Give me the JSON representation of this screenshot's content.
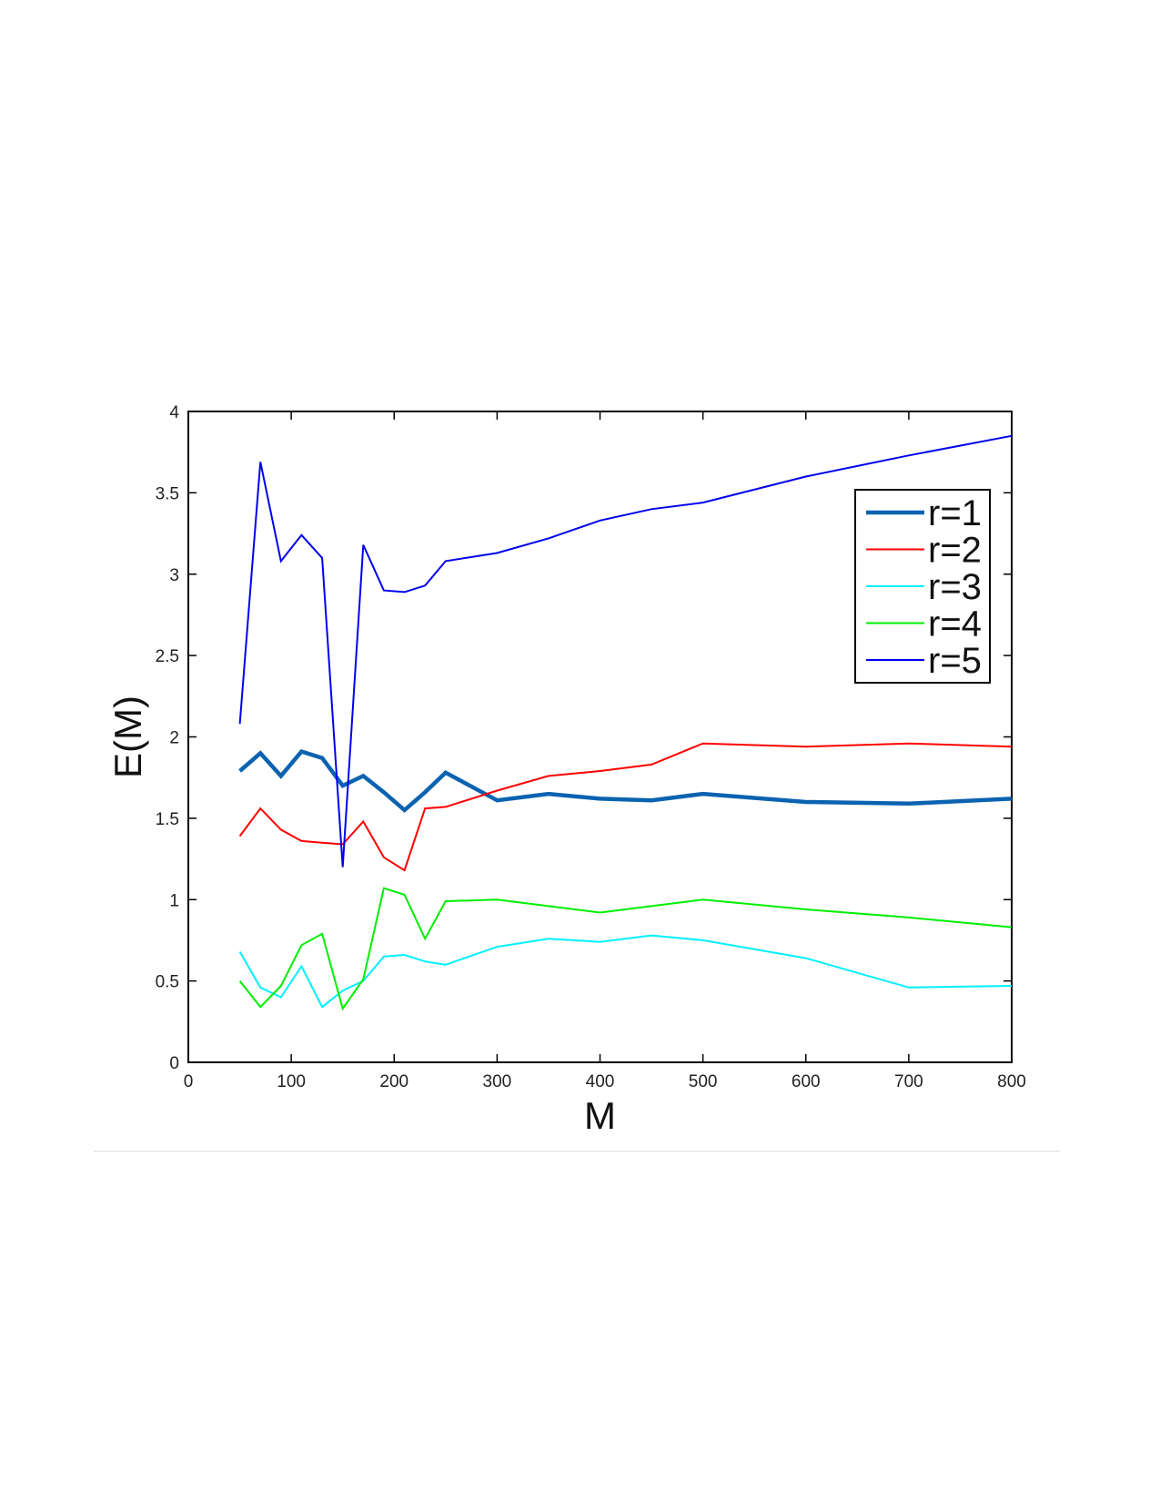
{
  "chart_data": {
    "type": "line",
    "title": "",
    "xlabel": "M",
    "ylabel": "E(M)",
    "xlim": [
      0,
      800
    ],
    "ylim": [
      0,
      4
    ],
    "xticks": [
      0,
      100,
      200,
      300,
      400,
      500,
      600,
      700,
      800
    ],
    "yticks": [
      0,
      0.5,
      1,
      1.5,
      2,
      2.5,
      3,
      3.5,
      4
    ],
    "ytick_labels": [
      "0",
      "0.5",
      "1",
      "1.5",
      "2",
      "2.5",
      "3",
      "3.5",
      "4"
    ],
    "grid": false,
    "legend_position": "top-right",
    "series": [
      {
        "name": "r=1",
        "color": "#0b63b0",
        "emphasis": "thick",
        "x": [
          50,
          70,
          90,
          110,
          130,
          150,
          170,
          190,
          210,
          230,
          250,
          300,
          350,
          400,
          450,
          500,
          600,
          700,
          800
        ],
        "y": [
          1.79,
          1.9,
          1.76,
          1.91,
          1.87,
          1.7,
          1.76,
          1.66,
          1.55,
          1.66,
          1.78,
          1.61,
          1.65,
          1.62,
          1.61,
          1.65,
          1.6,
          1.59,
          1.62
        ]
      },
      {
        "name": "r=2",
        "color": "#ff0000",
        "emphasis": "normal",
        "x": [
          50,
          70,
          90,
          110,
          130,
          150,
          170,
          190,
          210,
          230,
          250,
          300,
          350,
          400,
          450,
          500,
          600,
          700,
          800
        ],
        "y": [
          1.39,
          1.56,
          1.43,
          1.36,
          1.35,
          1.34,
          1.48,
          1.26,
          1.18,
          1.56,
          1.57,
          1.67,
          1.76,
          1.79,
          1.83,
          1.96,
          1.94,
          1.96,
          1.94
        ]
      },
      {
        "name": "r=3",
        "color": "#00f0ff",
        "emphasis": "normal",
        "x": [
          50,
          70,
          90,
          110,
          130,
          150,
          170,
          190,
          210,
          230,
          250,
          300,
          350,
          400,
          450,
          500,
          600,
          700,
          800
        ],
        "y": [
          0.68,
          0.46,
          0.4,
          0.59,
          0.34,
          0.44,
          0.5,
          0.65,
          0.66,
          0.62,
          0.6,
          0.71,
          0.76,
          0.74,
          0.78,
          0.75,
          0.64,
          0.46,
          0.47
        ]
      },
      {
        "name": "r=4",
        "color": "#00ee00",
        "emphasis": "normal",
        "x": [
          50,
          70,
          90,
          110,
          130,
          150,
          170,
          190,
          210,
          230,
          250,
          300,
          350,
          400,
          450,
          500,
          600,
          700,
          800
        ],
        "y": [
          0.5,
          0.34,
          0.47,
          0.72,
          0.79,
          0.33,
          0.51,
          1.07,
          1.03,
          0.76,
          0.99,
          1.0,
          0.96,
          0.92,
          0.96,
          1.0,
          0.94,
          0.89,
          0.83
        ]
      },
      {
        "name": "r=5",
        "color": "#0000ee",
        "emphasis": "normal",
        "x": [
          50,
          70,
          90,
          110,
          130,
          150,
          170,
          190,
          210,
          230,
          250,
          300,
          350,
          400,
          450,
          500,
          600,
          700,
          800
        ],
        "y": [
          2.08,
          3.69,
          3.08,
          3.24,
          3.1,
          1.2,
          3.18,
          2.9,
          2.89,
          2.93,
          3.08,
          3.13,
          3.22,
          3.33,
          3.4,
          3.44,
          3.6,
          3.73,
          3.85
        ]
      }
    ]
  }
}
